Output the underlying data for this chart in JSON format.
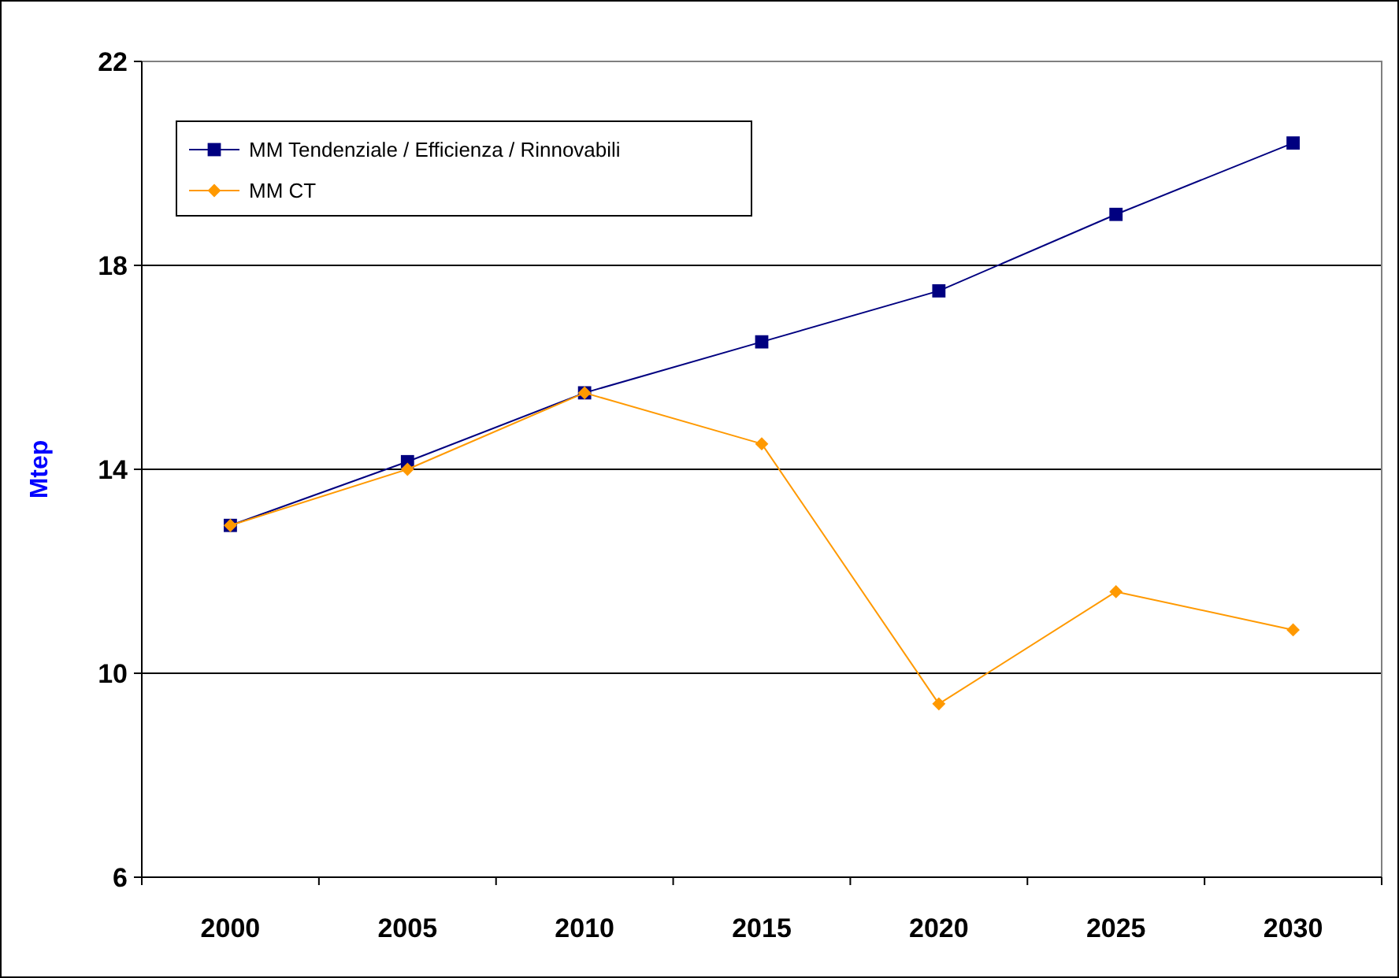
{
  "chart_data": {
    "type": "line",
    "ylabel": "Mtep",
    "categories": [
      "2000",
      "2005",
      "2010",
      "2015",
      "2020",
      "2025",
      "2030"
    ],
    "series": [
      {
        "name": "MM Tendenziale / Efficienza / Rinnovabili",
        "color": "#000080",
        "marker": "square",
        "values": [
          12.9,
          14.15,
          15.5,
          16.5,
          17.5,
          19.0,
          20.4
        ]
      },
      {
        "name": "MM CT",
        "color": "#ff9900",
        "marker": "diamond",
        "values": [
          12.9,
          14.0,
          15.5,
          14.5,
          9.4,
          11.6,
          10.85
        ]
      }
    ],
    "ylim": [
      6,
      22
    ],
    "yticks": [
      6,
      10,
      14,
      18,
      22
    ],
    "grid": "y",
    "legend": "top left",
    "line_style": "solid"
  }
}
